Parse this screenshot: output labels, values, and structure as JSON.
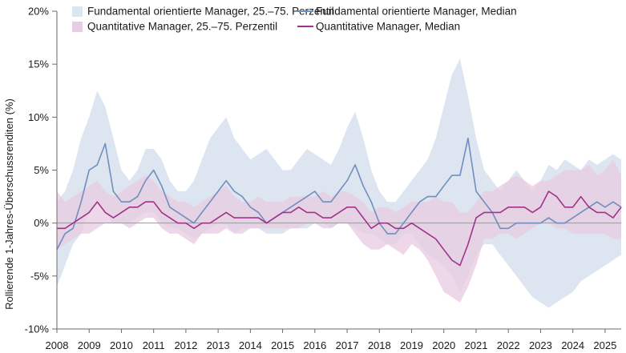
{
  "chart_data": {
    "type": "area",
    "ylabel": "Rollierende 1-Jahres-Überschussrenditen (%)",
    "xlabel": "",
    "ylim": [
      -10,
      20
    ],
    "xlim": [
      2008,
      2025.5
    ],
    "yticks": [
      -10,
      -5,
      0,
      5,
      10,
      15,
      20
    ],
    "ytick_labels": [
      "-10%",
      "-5%",
      "0%",
      "5%",
      "10%",
      "15%",
      "20%"
    ],
    "xticks": [
      2008,
      2009,
      2010,
      2011,
      2012,
      2013,
      2014,
      2015,
      2016,
      2017,
      2018,
      2019,
      2020,
      2021,
      2022,
      2023,
      2024,
      2025
    ],
    "xtick_labels": [
      "2008",
      "2009",
      "2010",
      "2011",
      "2012",
      "2013",
      "2014",
      "2015",
      "2016",
      "2017",
      "2018",
      "2019",
      "2020",
      "2021",
      "2022",
      "2023",
      "2024",
      "2025"
    ],
    "legend_position": "top",
    "x": [
      2008.0,
      2008.25,
      2008.5,
      2008.75,
      2009.0,
      2009.25,
      2009.5,
      2009.75,
      2010.0,
      2010.25,
      2010.5,
      2010.75,
      2011.0,
      2011.25,
      2011.5,
      2011.75,
      2012.0,
      2012.25,
      2012.5,
      2012.75,
      2013.0,
      2013.25,
      2013.5,
      2013.75,
      2014.0,
      2014.25,
      2014.5,
      2014.75,
      2015.0,
      2015.25,
      2015.5,
      2015.75,
      2016.0,
      2016.25,
      2016.5,
      2016.75,
      2017.0,
      2017.25,
      2017.5,
      2017.75,
      2018.0,
      2018.25,
      2018.5,
      2018.75,
      2019.0,
      2019.25,
      2019.5,
      2019.75,
      2020.0,
      2020.25,
      2020.5,
      2020.75,
      2021.0,
      2021.25,
      2021.5,
      2021.75,
      2022.0,
      2022.25,
      2022.5,
      2022.75,
      2023.0,
      2023.25,
      2023.5,
      2023.75,
      2024.0,
      2024.25,
      2024.5,
      2024.75,
      2025.0,
      2025.25,
      2025.5
    ],
    "series": [
      {
        "name": "Fundamental orientierte Manager, 25.–75. Perzentil",
        "kind": "band",
        "color": "#dde5f0",
        "lower": [
          -6,
          -4,
          -2,
          -1,
          1,
          2,
          1,
          0,
          0,
          0,
          0.5,
          1,
          1,
          0,
          -0.5,
          -0.5,
          -1,
          -1.5,
          -1,
          -0.5,
          0,
          0,
          -1,
          -0.5,
          -0.5,
          -0.5,
          -1,
          -1,
          -1,
          -0.5,
          -0.5,
          -0.5,
          0,
          0,
          -0.5,
          0,
          0,
          -0.5,
          -1,
          -1,
          -1.5,
          -2,
          -2,
          -1,
          -1,
          -2,
          -3,
          -3.5,
          -4,
          -5,
          -6.5,
          -5,
          -3,
          -2,
          -2,
          -3,
          -4,
          -5,
          -6,
          -7,
          -7.5,
          -8,
          -7.5,
          -7,
          -6.5,
          -5.5,
          -5,
          -4.5,
          -4,
          -3.5,
          -3
        ],
        "upper": [
          2,
          3,
          5,
          8,
          10,
          12.5,
          11,
          8,
          5,
          4,
          5,
          7,
          7,
          6,
          4,
          3,
          3,
          4,
          6,
          8,
          9,
          10,
          8,
          7,
          6,
          6.5,
          7,
          6,
          5,
          5,
          6,
          7,
          6.5,
          6,
          5.5,
          7,
          9,
          10.5,
          8,
          5,
          3,
          2,
          2,
          3,
          4,
          5,
          6,
          8,
          11,
          14,
          15.5,
          12,
          8,
          5,
          4,
          3,
          4,
          5,
          4,
          3,
          4,
          5.5,
          5,
          6,
          5.5,
          5,
          6,
          5.5,
          6,
          6.5,
          6
        ]
      },
      {
        "name": "Quantitative Manager, 25.–75. Perzentil",
        "kind": "band",
        "color": "#e8cde2",
        "lower": [
          -2.5,
          -2,
          -1.5,
          -1,
          -1,
          -0.5,
          0,
          0,
          0,
          -0.5,
          0,
          0.5,
          0.5,
          -0.5,
          -1,
          -1,
          -1.5,
          -2,
          -1,
          -1,
          -1,
          -0.5,
          -1,
          -1,
          -0.5,
          -0.5,
          -0.5,
          -0.5,
          -0.5,
          -0.5,
          -0.5,
          0,
          0,
          -0.5,
          -0.5,
          0,
          0,
          -1,
          -2,
          -2.5,
          -2.5,
          -2,
          -2.5,
          -3,
          -2,
          -2.5,
          -3.5,
          -5,
          -6.5,
          -7,
          -7.5,
          -6,
          -4,
          -1.5,
          -1.5,
          -1,
          -1,
          -1.5,
          -1,
          -0.5,
          0,
          0,
          -0.5,
          -0.5,
          -1,
          -1,
          -1,
          -1,
          -1,
          -1.5,
          -1.5
        ],
        "upper": [
          3,
          2,
          2.5,
          3,
          3.5,
          4,
          3,
          2.5,
          3,
          3.5,
          4,
          4.5,
          4,
          3,
          2.5,
          2,
          2,
          1.5,
          2,
          2.5,
          3,
          3.5,
          2.5,
          2,
          2,
          2.5,
          2,
          2,
          2,
          2.5,
          2.5,
          2.5,
          2.5,
          3,
          2.5,
          3,
          3,
          2.5,
          2,
          1,
          1.5,
          1.5,
          1,
          1.5,
          2,
          2,
          2,
          2.5,
          2,
          2,
          1,
          1,
          2,
          3,
          3,
          3.5,
          4,
          4.5,
          4,
          3.5,
          4,
          4,
          4.5,
          5,
          5,
          5,
          5.5,
          4.5,
          5,
          6,
          4.5
        ]
      },
      {
        "name": "Fundamental orientierte Manager, Median",
        "kind": "line",
        "color": "#6f8fbe",
        "values": [
          -2.5,
          -1,
          -0.5,
          2,
          5,
          5.5,
          7.5,
          3,
          2,
          2,
          2.5,
          4,
          5,
          3.5,
          1.5,
          1,
          0.5,
          0,
          1,
          2,
          3,
          4,
          3,
          2.5,
          1.5,
          1,
          0,
          0.5,
          1,
          1.5,
          2,
          2.5,
          3,
          2,
          2,
          3,
          4,
          5.5,
          3.5,
          2,
          0,
          -1,
          -1,
          0,
          1,
          2,
          2.5,
          2.5,
          3.5,
          4.5,
          4.5,
          8,
          3,
          2,
          1,
          -0.5,
          -0.5,
          0,
          0,
          0,
          0,
          0.5,
          0,
          0,
          0.5,
          1,
          1.5,
          2,
          1.5,
          2,
          1.5
        ]
      },
      {
        "name": "Quantitative Manager, Median",
        "kind": "line",
        "color": "#a23388",
        "values": [
          -0.5,
          -0.5,
          0,
          0.5,
          1,
          2,
          1,
          0.5,
          1,
          1.5,
          1.5,
          2,
          2,
          1,
          0.5,
          0,
          0,
          -0.5,
          0,
          0,
          0.5,
          1,
          0.5,
          0.5,
          0.5,
          0.5,
          0,
          0.5,
          1,
          1,
          1.5,
          1,
          1,
          0.5,
          0.5,
          1,
          1.5,
          1.5,
          0.5,
          -0.5,
          0,
          0,
          -0.5,
          -0.5,
          0,
          -0.5,
          -1,
          -1.5,
          -2.5,
          -3.5,
          -4,
          -2,
          0.5,
          1,
          1,
          1,
          1.5,
          1.5,
          1.5,
          1,
          1.5,
          3,
          2.5,
          1.5,
          1.5,
          2.5,
          1.5,
          1,
          1,
          0.5,
          1.5
        ]
      }
    ]
  }
}
